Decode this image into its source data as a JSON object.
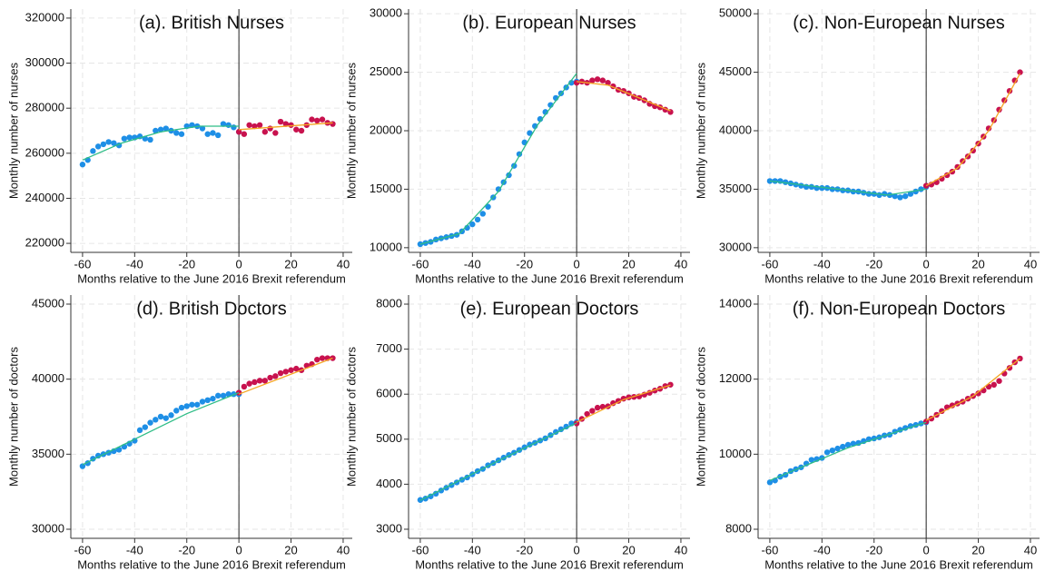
{
  "chart_data": [
    {
      "type": "scatter",
      "title": "(a). British Nurses",
      "xlabel": "Months relative to the June 2016 Brexit referendum",
      "ylabel": "Monthly number of nurses",
      "xlim": [
        -64.5,
        43.5
      ],
      "xticks": [
        -60,
        -40,
        -20,
        0,
        20,
        40
      ],
      "ylim": [
        216000,
        324000
      ],
      "yticks": [
        220000,
        240000,
        260000,
        280000,
        300000,
        320000
      ],
      "grid": true,
      "vline": 0,
      "series": [
        {
          "mode": "markers",
          "color": "#1e8fe6",
          "x": [
            -60,
            -58,
            -56,
            -54,
            -52,
            -50,
            -48,
            -46,
            -44,
            -42,
            -40,
            -38,
            -36,
            -34,
            -32,
            -30,
            -28,
            -26,
            -24,
            -22,
            -20,
            -18,
            -16,
            -14,
            -12,
            -10,
            -8,
            -6,
            -4,
            -2,
            0
          ],
          "values": [
            255000,
            257000,
            261000,
            263000,
            264000,
            265000,
            264500,
            263500,
            266500,
            267000,
            267000,
            267500,
            266500,
            266000,
            270000,
            270500,
            271000,
            270000,
            269000,
            268500,
            272000,
            272500,
            272000,
            271000,
            268500,
            269000,
            268000,
            273000,
            272500,
            271500,
            269500
          ]
        },
        {
          "mode": "markers",
          "color": "#c8124e",
          "x": [
            0,
            2,
            4,
            6,
            8,
            10,
            12,
            14,
            16,
            18,
            20,
            22,
            24,
            26,
            28,
            30,
            32,
            34,
            36
          ],
          "values": [
            269500,
            268500,
            272500,
            272000,
            272500,
            269500,
            271000,
            269000,
            274000,
            273000,
            272500,
            270500,
            270000,
            272500,
            275000,
            274500,
            275000,
            273500,
            273000
          ]
        },
        {
          "mode": "line",
          "color": "#2ebd86",
          "x": [
            -60,
            -45,
            -30,
            -15,
            0
          ],
          "values": [
            257000,
            264500,
            269500,
            272000,
            272000
          ]
        },
        {
          "mode": "line",
          "color": "#f5a623",
          "x": [
            0,
            12,
            24,
            36
          ],
          "values": [
            270500,
            271500,
            272500,
            273500
          ]
        }
      ]
    },
    {
      "type": "scatter",
      "title": "(b). European Nurses",
      "xlabel": "Months relative to the June 2016 Brexit referendum",
      "ylabel": "Monthly number of nurses",
      "xlim": [
        -64.5,
        43.5
      ],
      "xticks": [
        -60,
        -40,
        -20,
        0,
        20,
        40
      ],
      "ylim": [
        9600,
        30400
      ],
      "yticks": [
        10000,
        15000,
        20000,
        25000,
        30000
      ],
      "grid": true,
      "vline": 0,
      "series": [
        {
          "mode": "markers",
          "color": "#1e8fe6",
          "x": [
            -60,
            -58,
            -56,
            -54,
            -52,
            -50,
            -48,
            -46,
            -44,
            -42,
            -40,
            -38,
            -36,
            -34,
            -32,
            -30,
            -28,
            -26,
            -24,
            -22,
            -20,
            -18,
            -16,
            -14,
            -12,
            -10,
            -8,
            -6,
            -4,
            -2,
            0
          ],
          "values": [
            10300,
            10400,
            10500,
            10700,
            10800,
            10900,
            11000,
            11100,
            11400,
            11700,
            12000,
            12400,
            12900,
            13500,
            14300,
            15000,
            15600,
            16200,
            17000,
            18000,
            19000,
            19800,
            20400,
            21000,
            21600,
            22200,
            22800,
            23200,
            23700,
            24100,
            24200
          ]
        },
        {
          "mode": "markers",
          "color": "#c8124e",
          "x": [
            0,
            2,
            4,
            6,
            8,
            10,
            12,
            14,
            16,
            18,
            20,
            22,
            24,
            26,
            28,
            30,
            32,
            34,
            36
          ],
          "values": [
            24100,
            24200,
            24100,
            24300,
            24400,
            24300,
            24100,
            23800,
            23500,
            23400,
            23200,
            22900,
            22800,
            22600,
            22300,
            22100,
            22000,
            21800,
            21600
          ]
        },
        {
          "mode": "line",
          "color": "#2ebd86",
          "x": [
            -60,
            -45,
            -30,
            -15,
            0
          ],
          "values": [
            10300,
            11200,
            14800,
            20500,
            24900
          ]
        },
        {
          "mode": "line",
          "color": "#f5a623",
          "x": [
            0,
            12,
            24,
            36
          ],
          "values": [
            24200,
            23900,
            22800,
            21700
          ]
        }
      ]
    },
    {
      "type": "scatter",
      "title": "(c). Non-European Nurses",
      "xlabel": "Months relative to the June 2016 Brexit referendum",
      "ylabel": "Monthly number of nurses",
      "xlim": [
        -64.5,
        43.5
      ],
      "xticks": [
        -60,
        -40,
        -20,
        0,
        20,
        40
      ],
      "ylim": [
        29600,
        50400
      ],
      "yticks": [
        30000,
        35000,
        40000,
        45000,
        50000
      ],
      "grid": true,
      "vline": 0,
      "series": [
        {
          "mode": "markers",
          "color": "#1e8fe6",
          "x": [
            -60,
            -58,
            -56,
            -54,
            -52,
            -50,
            -48,
            -46,
            -44,
            -42,
            -40,
            -38,
            -36,
            -34,
            -32,
            -30,
            -28,
            -26,
            -24,
            -22,
            -20,
            -18,
            -16,
            -14,
            -12,
            -10,
            -8,
            -6,
            -4,
            -2,
            0
          ],
          "values": [
            35700,
            35700,
            35700,
            35600,
            35500,
            35400,
            35300,
            35200,
            35200,
            35100,
            35100,
            35100,
            35000,
            35000,
            34900,
            34900,
            34800,
            34800,
            34700,
            34600,
            34600,
            34500,
            34600,
            34500,
            34400,
            34300,
            34400,
            34600,
            34800,
            35000,
            35200
          ]
        },
        {
          "mode": "markers",
          "color": "#c8124e",
          "x": [
            0,
            2,
            4,
            6,
            8,
            10,
            12,
            14,
            16,
            18,
            20,
            22,
            24,
            26,
            28,
            30,
            32,
            34,
            36
          ],
          "values": [
            35300,
            35400,
            35600,
            35900,
            36200,
            36500,
            36900,
            37400,
            37800,
            38300,
            38900,
            39500,
            40200,
            40900,
            41800,
            42600,
            43400,
            44300,
            45000
          ]
        },
        {
          "mode": "line",
          "color": "#2ebd86",
          "x": [
            -60,
            -45,
            -30,
            -15,
            0
          ],
          "values": [
            35700,
            35300,
            34900,
            34500,
            35000
          ]
        },
        {
          "mode": "line",
          "color": "#f5a623",
          "x": [
            0,
            12,
            24,
            36
          ],
          "values": [
            35300,
            36800,
            40000,
            44900
          ]
        }
      ]
    },
    {
      "type": "scatter",
      "title": "(d). British Doctors",
      "xlabel": "Months relative to the June 2016 Brexit referendum",
      "ylabel": "Monthly number of doctors",
      "xlim": [
        -64.5,
        43.5
      ],
      "xticks": [
        -60,
        -40,
        -20,
        0,
        20,
        40
      ],
      "ylim": [
        29395,
        45605
      ],
      "yticks": [
        30000,
        35000,
        40000,
        45000
      ],
      "grid": true,
      "vline": 0,
      "series": [
        {
          "mode": "markers",
          "color": "#1e8fe6",
          "x": [
            -60,
            -58,
            -56,
            -54,
            -52,
            -50,
            -48,
            -46,
            -44,
            -42,
            -40,
            -38,
            -36,
            -34,
            -32,
            -30,
            -28,
            -26,
            -24,
            -22,
            -20,
            -18,
            -16,
            -14,
            -12,
            -10,
            -8,
            -6,
            -4,
            -2,
            0
          ],
          "values": [
            34200,
            34400,
            34700,
            34900,
            35000,
            35100,
            35200,
            35300,
            35500,
            35700,
            35900,
            36600,
            36800,
            37100,
            37300,
            37500,
            37400,
            37600,
            37900,
            38100,
            38200,
            38300,
            38300,
            38500,
            38600,
            38700,
            38900,
            38900,
            39000,
            39000,
            39000
          ]
        },
        {
          "mode": "markers",
          "color": "#c8124e",
          "x": [
            0,
            2,
            4,
            6,
            8,
            10,
            12,
            14,
            16,
            18,
            20,
            22,
            24,
            26,
            28,
            30,
            32,
            34,
            36
          ],
          "values": [
            39100,
            39500,
            39700,
            39800,
            39900,
            39900,
            40100,
            40200,
            40400,
            40500,
            40600,
            40700,
            40600,
            40900,
            41000,
            41300,
            41400,
            41400,
            41400
          ]
        },
        {
          "mode": "line",
          "color": "#2ebd86",
          "x": [
            -60,
            -40,
            -20,
            0
          ],
          "values": [
            34300,
            36000,
            37700,
            39100
          ]
        },
        {
          "mode": "line",
          "color": "#f5a623",
          "x": [
            0,
            18,
            36
          ],
          "values": [
            39000,
            40200,
            41400
          ]
        }
      ]
    },
    {
      "type": "scatter",
      "title": "(e). European Doctors",
      "xlabel": "Months relative to the June 2016 Brexit referendum",
      "ylabel": "Monthly number of doctors",
      "xlim": [
        -64.5,
        43.5
      ],
      "xticks": [
        -60,
        -40,
        -20,
        0,
        20,
        40
      ],
      "ylim": [
        2798,
        8202
      ],
      "yticks": [
        3000,
        4000,
        5000,
        6000,
        7000,
        8000
      ],
      "grid": true,
      "vline": 0,
      "series": [
        {
          "mode": "markers",
          "color": "#1e8fe6",
          "x": [
            -60,
            -58,
            -56,
            -54,
            -52,
            -50,
            -48,
            -46,
            -44,
            -42,
            -40,
            -38,
            -36,
            -34,
            -32,
            -30,
            -28,
            -26,
            -24,
            -22,
            -20,
            -18,
            -16,
            -14,
            -12,
            -10,
            -8,
            -6,
            -4,
            -2,
            0
          ],
          "values": [
            3650,
            3680,
            3730,
            3790,
            3860,
            3920,
            3980,
            4040,
            4100,
            4150,
            4220,
            4290,
            4340,
            4420,
            4470,
            4530,
            4590,
            4650,
            4700,
            4760,
            4820,
            4880,
            4920,
            4970,
            5020,
            5090,
            5160,
            5220,
            5280,
            5350,
            5380
          ]
        },
        {
          "mode": "markers",
          "color": "#c8124e",
          "x": [
            0,
            2,
            4,
            6,
            8,
            10,
            12,
            14,
            16,
            18,
            20,
            22,
            24,
            26,
            28,
            30,
            32,
            34,
            36
          ],
          "values": [
            5350,
            5450,
            5560,
            5630,
            5700,
            5720,
            5730,
            5800,
            5850,
            5900,
            5930,
            5940,
            5950,
            5990,
            6030,
            6080,
            6120,
            6180,
            6210
          ]
        },
        {
          "mode": "line",
          "color": "#2ebd86",
          "x": [
            -60,
            -30,
            0
          ],
          "values": [
            3640,
            4520,
            5360
          ]
        },
        {
          "mode": "line",
          "color": "#f5a623",
          "x": [
            0,
            18,
            36
          ],
          "values": [
            5380,
            5880,
            6200
          ]
        }
      ]
    },
    {
      "type": "scatter",
      "title": "(f). Non-European Doctors",
      "xlabel": "Months relative to the June 2016 Brexit referendum",
      "ylabel": "Monthly number of doctors",
      "xlim": [
        -64.5,
        43.5
      ],
      "xticks": [
        -60,
        -40,
        -20,
        0,
        20,
        40
      ],
      "ylim": [
        7758,
        14242
      ],
      "yticks": [
        8000,
        10000,
        12000,
        14000
      ],
      "grid": true,
      "vline": 0,
      "series": [
        {
          "mode": "markers",
          "color": "#1e8fe6",
          "x": [
            -60,
            -58,
            -56,
            -54,
            -52,
            -50,
            -48,
            -46,
            -44,
            -42,
            -40,
            -38,
            -36,
            -34,
            -32,
            -30,
            -28,
            -26,
            -24,
            -22,
            -20,
            -18,
            -16,
            -14,
            -12,
            -10,
            -8,
            -6,
            -4,
            -2,
            0
          ],
          "values": [
            9250,
            9300,
            9400,
            9450,
            9550,
            9600,
            9650,
            9750,
            9850,
            9870,
            9900,
            10050,
            10100,
            10150,
            10200,
            10250,
            10280,
            10300,
            10350,
            10400,
            10420,
            10450,
            10500,
            10520,
            10600,
            10650,
            10700,
            10750,
            10780,
            10820,
            10850
          ]
        },
        {
          "mode": "markers",
          "color": "#c8124e",
          "x": [
            0,
            2,
            4,
            6,
            8,
            10,
            12,
            14,
            16,
            18,
            20,
            22,
            24,
            26,
            28,
            30,
            32,
            34,
            36
          ],
          "values": [
            10870,
            10950,
            11050,
            11150,
            11250,
            11300,
            11350,
            11400,
            11480,
            11550,
            11620,
            11700,
            11800,
            11850,
            11950,
            12150,
            12300,
            12450,
            12550
          ]
        },
        {
          "mode": "line",
          "color": "#2ebd86",
          "x": [
            -60,
            -30,
            0
          ],
          "values": [
            9300,
            10170,
            10850
          ]
        },
        {
          "mode": "line",
          "color": "#f5a623",
          "x": [
            0,
            18,
            36
          ],
          "values": [
            10900,
            11550,
            12550
          ]
        }
      ]
    }
  ]
}
